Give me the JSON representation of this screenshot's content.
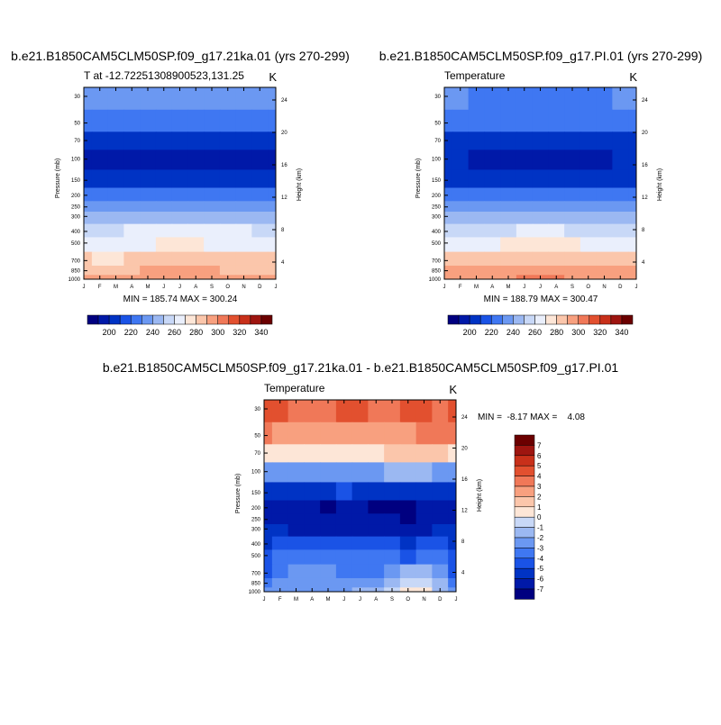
{
  "chart_data": [
    {
      "type": "heatmap",
      "title": "b.e21.B1850CAM5CLM50SP.f09_g17.21ka.01 (yrs 270-299)",
      "subtitle_left": "T at -12.722513089005​23,131.25",
      "subtitle_right": "K",
      "ylabel": "Pressure (mb)",
      "ylabel_right": "Height (km)",
      "x_ticks": [
        "J",
        "F",
        "M",
        "A",
        "M",
        "J",
        "J",
        "A",
        "S",
        "O",
        "N",
        "D",
        "J"
      ],
      "y_ticks": [
        "30",
        "50",
        "70",
        "100",
        "150",
        "200",
        "250",
        "300",
        "400",
        "500",
        "700",
        "850",
        "1000"
      ],
      "y_ticks_right": [
        "24",
        "20",
        "16",
        "12",
        "8",
        "4"
      ],
      "stats": "MIN = 185.74 MAX = 300.24",
      "colorbar_labels": [
        "200",
        "220",
        "240",
        "260",
        "280",
        "300",
        "320",
        "340"
      ],
      "zrange": [
        185.74,
        300.24
      ],
      "levels": [
        30,
        50,
        70,
        100,
        150,
        200,
        250,
        300,
        400,
        500,
        700,
        850,
        1000
      ],
      "rows": [
        [
          236,
          233,
          231,
          230,
          230,
          231,
          233,
          234,
          233,
          231,
          230,
          232,
          236
        ],
        [
          229,
          227,
          225,
          224,
          224,
          225,
          226,
          226,
          225,
          224,
          224,
          226,
          229
        ],
        [
          205,
          204,
          203,
          202,
          202,
          202,
          203,
          203,
          203,
          202,
          203,
          204,
          205
        ],
        [
          198,
          198,
          197,
          197,
          197,
          197,
          197,
          197,
          197,
          197,
          197,
          198,
          198
        ],
        [
          203,
          203,
          203,
          204,
          204,
          204,
          204,
          204,
          204,
          204,
          204,
          203,
          203
        ],
        [
          222,
          222,
          222,
          223,
          223,
          223,
          223,
          223,
          223,
          223,
          223,
          222,
          222
        ],
        [
          235,
          235,
          235,
          236,
          236,
          236,
          236,
          236,
          236,
          236,
          236,
          235,
          235
        ],
        [
          245,
          245,
          245,
          246,
          246,
          247,
          247,
          247,
          246,
          246,
          246,
          245,
          245
        ],
        [
          259,
          259,
          259,
          260,
          260,
          261,
          261,
          261,
          260,
          260,
          260,
          259,
          259
        ],
        [
          268,
          268,
          268,
          269,
          269,
          270,
          270,
          270,
          269,
          269,
          269,
          268,
          268
        ],
        [
          280,
          279,
          279,
          280,
          281,
          282,
          282,
          282,
          281,
          280,
          280,
          280,
          280
        ],
        [
          288,
          288,
          288,
          289,
          290,
          291,
          291,
          291,
          290,
          289,
          289,
          288,
          288
        ],
        [
          295,
          294,
          294,
          295,
          296,
          298,
          298,
          298,
          297,
          296,
          295,
          295,
          295
        ]
      ]
    },
    {
      "type": "heatmap",
      "title": "b.e21.B1850CAM5CLM50SP.f09_g17.PI.01 (yrs 270-299)",
      "subtitle_left": "Temperature",
      "subtitle_right": "K",
      "ylabel": "Pressure (mb)",
      "ylabel_right": "Height (km)",
      "x_ticks": [
        "J",
        "F",
        "M",
        "A",
        "M",
        "J",
        "J",
        "A",
        "S",
        "O",
        "N",
        "D",
        "J"
      ],
      "y_ticks": [
        "30",
        "50",
        "70",
        "100",
        "150",
        "200",
        "250",
        "300",
        "400",
        "500",
        "700",
        "850",
        "1000"
      ],
      "y_ticks_right": [
        "24",
        "20",
        "16",
        "12",
        "8",
        "4"
      ],
      "stats": "MIN = 188.79 MAX = 300.47",
      "colorbar_labels": [
        "200",
        "220",
        "240",
        "260",
        "280",
        "300",
        "320",
        "340"
      ],
      "zrange": [
        188.79,
        300.47
      ],
      "levels": [
        30,
        50,
        70,
        100,
        150,
        200,
        250,
        300,
        400,
        500,
        700,
        850,
        1000
      ],
      "rows": [
        [
          231,
          230,
          229,
          229,
          229,
          229,
          228,
          229,
          229,
          229,
          229,
          230,
          231
        ],
        [
          222,
          222,
          221,
          221,
          221,
          221,
          221,
          221,
          221,
          221,
          221,
          222,
          222
        ],
        [
          207,
          207,
          206,
          206,
          206,
          206,
          206,
          206,
          206,
          206,
          206,
          207,
          207
        ],
        [
          200,
          200,
          199,
          199,
          199,
          199,
          199,
          199,
          199,
          199,
          199,
          200,
          200
        ],
        [
          209,
          209,
          209,
          209,
          209,
          209,
          209,
          209,
          209,
          209,
          209,
          209,
          209
        ],
        [
          223,
          223,
          223,
          223,
          223,
          223,
          223,
          223,
          223,
          223,
          223,
          223,
          223
        ],
        [
          236,
          236,
          236,
          236,
          237,
          237,
          237,
          237,
          237,
          236,
          236,
          236,
          236
        ],
        [
          245,
          245,
          245,
          246,
          246,
          247,
          247,
          247,
          246,
          246,
          246,
          245,
          245
        ],
        [
          258,
          258,
          258,
          259,
          259,
          260,
          260,
          260,
          259,
          259,
          259,
          258,
          258
        ],
        [
          268,
          268,
          268,
          269,
          270,
          271,
          271,
          271,
          270,
          269,
          269,
          268,
          268
        ],
        [
          283,
          283,
          283,
          284,
          285,
          286,
          286,
          286,
          285,
          284,
          284,
          283,
          283
        ],
        [
          291,
          291,
          291,
          292,
          293,
          294,
          294,
          294,
          293,
          292,
          292,
          291,
          291
        ],
        [
          297,
          297,
          297,
          298,
          299,
          300,
          300,
          300,
          299,
          298,
          298,
          297,
          297
        ]
      ]
    },
    {
      "type": "heatmap",
      "title": "b.e21.B1850CAM5CLM50SP.f09_g17.21ka.01 - b.e21.B1850CAM5CLM50SP.f09_g17.PI.01",
      "subtitle_left": "Temperature",
      "subtitle_right": "K",
      "ylabel": "Pressure (mb)",
      "ylabel_right": "Height (km)",
      "x_ticks": [
        "J",
        "F",
        "M",
        "A",
        "M",
        "J",
        "J",
        "A",
        "S",
        "O",
        "N",
        "D",
        "J"
      ],
      "y_ticks": [
        "30",
        "50",
        "70",
        "100",
        "150",
        "200",
        "250",
        "300",
        "400",
        "500",
        "700",
        "850",
        "1000"
      ],
      "y_ticks_right": [
        "24",
        "20",
        "16",
        "12",
        "8",
        "4"
      ],
      "stats": "MIN =  -8.17 MAX =    4.08",
      "colorbar_labels": [
        "7",
        "6",
        "5",
        "4",
        "3",
        "2",
        "1",
        "0",
        "-1",
        "-2",
        "-3",
        "-4",
        "-5",
        "-6",
        "-7"
      ],
      "zrange": [
        -8.17,
        4.08
      ],
      "levels": [
        30,
        50,
        70,
        100,
        150,
        200,
        250,
        300,
        400,
        500,
        700,
        850,
        1000
      ],
      "rows": [
        [
          4,
          4,
          3,
          3,
          3,
          4,
          4,
          3,
          3,
          4,
          4,
          3,
          4
        ],
        [
          3,
          2,
          2,
          2,
          2,
          2,
          2,
          2,
          2,
          2,
          3,
          3,
          3
        ],
        [
          0,
          0,
          0,
          0,
          0,
          0,
          0,
          0,
          1,
          1,
          1,
          1,
          0
        ],
        [
          -3,
          -3,
          -3,
          -3,
          -3,
          -3,
          -3,
          -3,
          -2,
          -2,
          -2,
          -3,
          -3
        ],
        [
          -6,
          -6,
          -6,
          -6,
          -6,
          -5,
          -6,
          -6,
          -6,
          -6,
          -6,
          -6,
          -6
        ],
        [
          -7,
          -7,
          -7,
          -7,
          -8,
          -7,
          -7,
          -8,
          -8,
          -8,
          -7,
          -7,
          -7
        ],
        [
          -7,
          -7,
          -7,
          -7,
          -7,
          -7,
          -7,
          -7,
          -7,
          -8,
          -7,
          -7,
          -7
        ],
        [
          -6,
          -6,
          -7,
          -7,
          -7,
          -7,
          -7,
          -7,
          -7,
          -7,
          -7,
          -6,
          -6
        ],
        [
          -6,
          -5,
          -5,
          -5,
          -5,
          -5,
          -5,
          -5,
          -5,
          -6,
          -5,
          -5,
          -6
        ],
        [
          -5,
          -4,
          -4,
          -4,
          -4,
          -4,
          -4,
          -4,
          -4,
          -5,
          -4,
          -4,
          -5
        ],
        [
          -5,
          -4,
          -3,
          -3,
          -3,
          -4,
          -4,
          -4,
          -3,
          -2,
          -2,
          -3,
          -5
        ],
        [
          -4,
          -3,
          -3,
          -3,
          -3,
          -3,
          -3,
          -3,
          -2,
          -1,
          -1,
          -2,
          -4
        ],
        [
          -3,
          -3,
          -3,
          -3,
          -3,
          -3,
          -2,
          -2,
          -1,
          0,
          0,
          -2,
          -3
        ]
      ]
    }
  ],
  "colors": {
    "scale": [
      "#000080",
      "#0019a8",
      "#0033c4",
      "#1a53e6",
      "#3f77f2",
      "#6b98f2",
      "#9bb8f2",
      "#c8d8f7",
      "#eaeffc",
      "#fde6d7",
      "#fbc6ab",
      "#f8a07f",
      "#f07858",
      "#e2502f",
      "#c8301a",
      "#9e1510",
      "#6b0000"
    ]
  }
}
